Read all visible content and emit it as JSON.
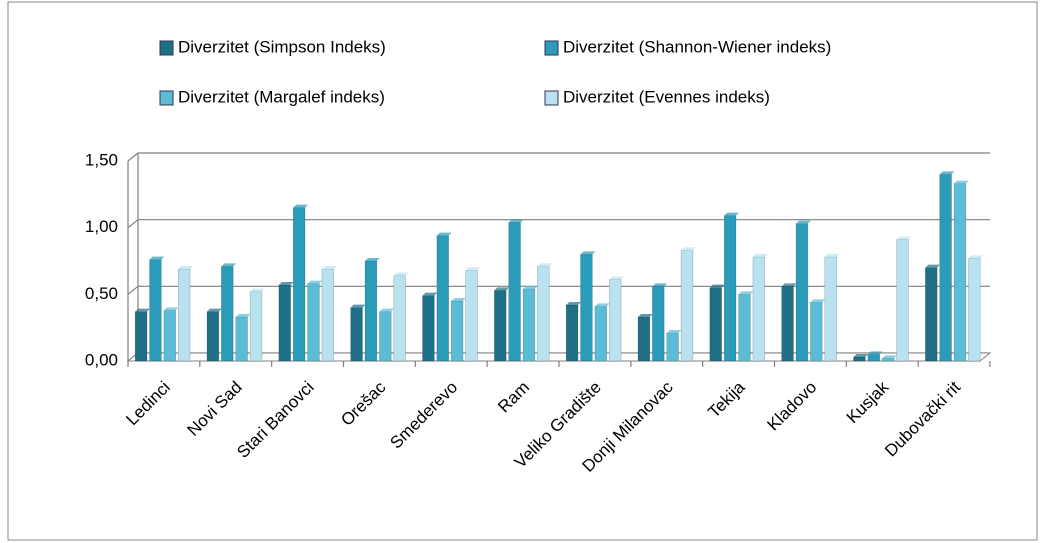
{
  "chart_data": {
    "type": "bar",
    "categories": [
      "Ledinci",
      "Novi Sad",
      "Stari Banovci",
      "Orešac",
      "Smederevo",
      "Ram",
      "Veliko Gradište",
      "Donji Milanovac",
      "Tekija",
      "Kladovo",
      "Kusjak",
      "Dubovački rit"
    ],
    "series": [
      {
        "name": "Diverzitet (Simpson Indeks)",
        "color": "#1f6f86",
        "values": [
          0.37,
          0.37,
          0.57,
          0.4,
          0.49,
          0.53,
          0.42,
          0.33,
          0.55,
          0.56,
          0.03,
          0.7
        ]
      },
      {
        "name": "Diverzitet (Shannon-Wiener indeks)",
        "color": "#2a9bb8",
        "values": [
          0.76,
          0.71,
          1.15,
          0.75,
          0.94,
          1.04,
          0.8,
          0.56,
          1.09,
          1.03,
          0.05,
          1.4
        ]
      },
      {
        "name": "Diverzitet (Margalef indeks)",
        "color": "#5bbcd6",
        "values": [
          0.38,
          0.33,
          0.58,
          0.37,
          0.45,
          0.54,
          0.41,
          0.21,
          0.5,
          0.44,
          0.02,
          1.33
        ]
      },
      {
        "name": "Diverzitet (Evennes indeks)",
        "color": "#b8e2ef",
        "values": [
          0.69,
          0.52,
          0.69,
          0.64,
          0.68,
          0.71,
          0.61,
          0.83,
          0.78,
          0.78,
          0.91,
          0.77
        ]
      }
    ],
    "ylim": [
      0,
      1.5
    ],
    "yticks": [
      {
        "value": 0,
        "label": "0,00"
      },
      {
        "value": 0.5,
        "label": "0,50"
      },
      {
        "value": 1,
        "label": "1,00"
      },
      {
        "value": 1.5,
        "label": "1,50"
      }
    ],
    "grid": true,
    "legend": "top"
  }
}
